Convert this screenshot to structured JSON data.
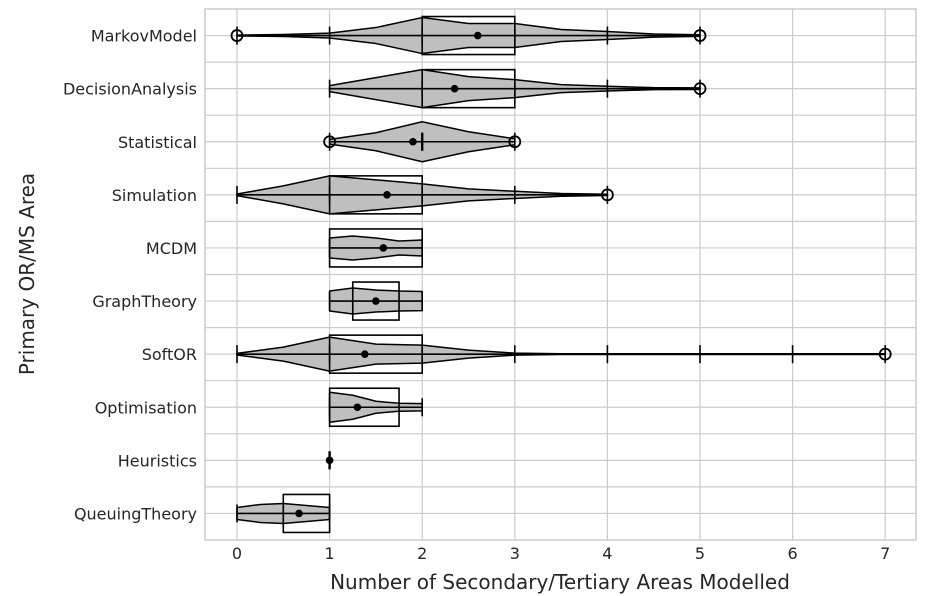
{
  "chart_data": {
    "type": "violin",
    "title": "",
    "xlabel": "Number of Secondary/Tertiary Areas Modelled",
    "ylabel": "Primary OR/MS Area",
    "xlim": [
      -0.35,
      7.35
    ],
    "xticks": [
      0,
      1,
      2,
      3,
      4,
      5,
      6,
      7
    ],
    "grid": true,
    "legend": "none",
    "colors": {
      "violin_fill": "#bfbfbf",
      "outline": "#000000",
      "grid": "#cccccc",
      "frame": "#cccccc"
    },
    "categories": [
      "MarkovModel",
      "DecisionAnalysis",
      "Statistical",
      "Simulation",
      "MCDM",
      "GraphTheory",
      "SoftOR",
      "Optimisation",
      "Heuristics",
      "QueuingTheory"
    ],
    "series": [
      {
        "category": "MarkovModel",
        "min": 0,
        "max": 5,
        "mean": 2.6,
        "q1": 2,
        "q3": 3,
        "outliers": [
          0,
          5
        ],
        "density": [
          [
            0,
            0.02
          ],
          [
            0.5,
            0.05
          ],
          [
            1,
            0.12
          ],
          [
            1.5,
            0.4
          ],
          [
            2,
            0.9
          ],
          [
            2.5,
            0.6
          ],
          [
            3,
            0.6
          ],
          [
            3.5,
            0.3
          ],
          [
            4,
            0.2
          ],
          [
            4.5,
            0.08
          ],
          [
            5,
            0.04
          ]
        ]
      },
      {
        "category": "DecisionAnalysis",
        "min": 1,
        "max": 5,
        "mean": 2.35,
        "q1": 2,
        "q3": 3,
        "outliers": [
          5
        ],
        "density": [
          [
            1,
            0.15
          ],
          [
            1.5,
            0.55
          ],
          [
            2,
            0.95
          ],
          [
            2.5,
            0.6
          ],
          [
            3,
            0.45
          ],
          [
            3.5,
            0.2
          ],
          [
            4,
            0.12
          ],
          [
            4.5,
            0.05
          ],
          [
            5,
            0.04
          ]
        ]
      },
      {
        "category": "Statistical",
        "min": 1,
        "max": 3,
        "mean": 1.9,
        "q1": 2,
        "q3": 2,
        "outliers": [
          1,
          3
        ],
        "density": [
          [
            1,
            0.12
          ],
          [
            1.5,
            0.45
          ],
          [
            2,
            1.0
          ],
          [
            2.5,
            0.5
          ],
          [
            3,
            0.15
          ]
        ]
      },
      {
        "category": "Simulation",
        "min": 0,
        "max": 4,
        "mean": 1.62,
        "q1": 1,
        "q3": 2,
        "outliers": [
          4
        ],
        "density": [
          [
            0,
            0.04
          ],
          [
            0.5,
            0.45
          ],
          [
            1,
            0.95
          ],
          [
            1.5,
            0.75
          ],
          [
            2,
            0.55
          ],
          [
            2.5,
            0.3
          ],
          [
            3,
            0.18
          ],
          [
            3.5,
            0.07
          ],
          [
            4,
            0.03
          ]
        ]
      },
      {
        "category": "MCDM",
        "min": 1,
        "max": 2,
        "mean": 1.58,
        "q1": 1,
        "q3": 2,
        "outliers": [],
        "density": [
          [
            1,
            0.5
          ],
          [
            1.25,
            0.6
          ],
          [
            1.5,
            0.5
          ],
          [
            1.75,
            0.35
          ],
          [
            2,
            0.4
          ]
        ]
      },
      {
        "category": "GraphTheory",
        "min": 1,
        "max": 2,
        "mean": 1.5,
        "q1": 1.25,
        "q3": 1.75,
        "outliers": [],
        "density": [
          [
            1,
            0.5
          ],
          [
            1.25,
            0.65
          ],
          [
            1.5,
            0.55
          ],
          [
            1.75,
            0.5
          ],
          [
            2,
            0.48
          ]
        ]
      },
      {
        "category": "SoftOR",
        "min": 0,
        "max": 7,
        "mean": 1.38,
        "q1": 1,
        "q3": 2,
        "outliers": [
          7
        ],
        "density": [
          [
            0,
            0.04
          ],
          [
            0.5,
            0.35
          ],
          [
            1,
            0.85
          ],
          [
            1.5,
            0.5
          ],
          [
            2,
            0.45
          ],
          [
            2.5,
            0.2
          ],
          [
            3,
            0.05
          ],
          [
            3.5,
            0.02
          ],
          [
            4,
            0.02
          ],
          [
            5,
            0.02
          ],
          [
            6,
            0.02
          ],
          [
            7,
            0.02
          ]
        ]
      },
      {
        "category": "Optimisation",
        "min": 1,
        "max": 2,
        "mean": 1.3,
        "q1": 1,
        "q3": 1.75,
        "outliers": [],
        "density": [
          [
            1,
            0.75
          ],
          [
            1.25,
            0.6
          ],
          [
            1.5,
            0.3
          ],
          [
            1.75,
            0.2
          ],
          [
            2,
            0.18
          ]
        ]
      },
      {
        "category": "Heuristics",
        "min": 1,
        "max": 1,
        "mean": 1,
        "q1": 1,
        "q3": 1,
        "outliers": [],
        "density": []
      },
      {
        "category": "QueuingTheory",
        "min": 0,
        "max": 1,
        "mean": 0.67,
        "q1": 0.5,
        "q3": 1,
        "outliers": [],
        "density": [
          [
            0,
            0.3
          ],
          [
            0.25,
            0.45
          ],
          [
            0.5,
            0.5
          ],
          [
            0.75,
            0.4
          ],
          [
            1,
            0.3
          ]
        ]
      }
    ]
  }
}
